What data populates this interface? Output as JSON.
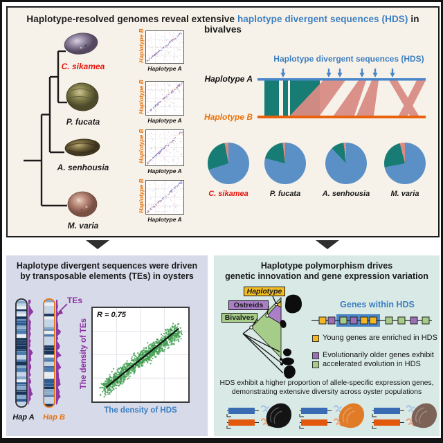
{
  "figure": {
    "title": {
      "prefix": "Haplotype-resolved genomes reveal extensive ",
      "highlight": "haplotype divergent sequences (HDS)",
      "suffix": " in bivalves",
      "highlight_color": "#3b7ec0"
    },
    "species": [
      {
        "name": "C. sikamea",
        "label_color": "#e8130c"
      },
      {
        "name": "P. fucata",
        "label_color": "#1a1a1a"
      },
      {
        "name": "A. senhousia",
        "label_color": "#1a1a1a"
      },
      {
        "name": "M. varia",
        "label_color": "#1a1a1a"
      }
    ],
    "dotplot": {
      "xlabel": "Haplotype A",
      "ylabel": "Haplotype B"
    },
    "hds_diagram": {
      "label": "Haplotype divergent sequences (HDS)",
      "hap_a": "Haplotype A",
      "hap_b": "Haplotype B",
      "colors": {
        "hap_a_line": "#4a86c8",
        "hap_b_line": "#e8620d",
        "shared_block": "#177d74",
        "divergent_ribbon": "#d98c84",
        "arrow": "#4a86c8"
      }
    }
  },
  "chart_data": [
    {
      "type": "pie",
      "title": "C. sikamea",
      "slices": [
        {
          "label": "blue",
          "value": 70,
          "color": "#5b90c6"
        },
        {
          "label": "teal",
          "value": 27,
          "color": "#177d74"
        },
        {
          "label": "pink",
          "value": 3,
          "color": "#d98c84"
        }
      ],
      "legend_position": "none"
    },
    {
      "type": "pie",
      "title": "P. fucata",
      "slices": [
        {
          "label": "blue",
          "value": 79,
          "color": "#5b90c6"
        },
        {
          "label": "teal",
          "value": 19,
          "color": "#177d74"
        },
        {
          "label": "pink",
          "value": 2,
          "color": "#d98c84"
        }
      ],
      "legend_position": "none"
    },
    {
      "type": "pie",
      "title": "A. senhousia",
      "slices": [
        {
          "label": "blue",
          "value": 88,
          "color": "#5b90c6"
        },
        {
          "label": "teal",
          "value": 10,
          "color": "#177d74"
        },
        {
          "label": "pink",
          "value": 2,
          "color": "#d98c84"
        }
      ],
      "legend_position": "none"
    },
    {
      "type": "pie",
      "title": "M. varia",
      "slices": [
        {
          "label": "blue",
          "value": 72,
          "color": "#5b90c6"
        },
        {
          "label": "teal",
          "value": 24,
          "color": "#177d74"
        },
        {
          "label": "pink",
          "value": 4,
          "color": "#d98c84"
        }
      ],
      "legend_position": "none"
    },
    {
      "type": "scatter",
      "title": "Density of TEs vs density of HDS",
      "annotation": "R = 0.75",
      "r_value": 0.75,
      "xlabel": "The density of HDS",
      "ylabel": "The density of TEs",
      "point_color": "#3e9c4e",
      "trend": "positive linear",
      "grid": true
    }
  ],
  "bottom_left": {
    "title_line1": "Haplotype divergent sequences were driven",
    "title_line2": "by transposable elements (TEs) in oysters",
    "tes_label": "TEs",
    "hap_a_label": "Hap A",
    "hap_b_label": "Hap B",
    "scatter_r_label": "R = 0.75",
    "scatter_xlabel": "The density of HDS",
    "scatter_ylabel": "The density of TEs",
    "track_color": "#8b2fa0",
    "hap_b_border": "#e8720c"
  },
  "bottom_right": {
    "title_line1": "Haplotype polymorphism drives",
    "title_line2": "genetic innovation and gene expression variation",
    "clades": [
      {
        "label": "Haplotype",
        "color": "#f2bd24"
      },
      {
        "label": "Ostreids",
        "color": "#ab7fc7"
      },
      {
        "label": "Bivalves",
        "color": "#a6cc89"
      }
    ],
    "genes_title": "Genes within HDS",
    "gene_row": {
      "sequence": [
        "yellow",
        "purple",
        "green",
        "purple",
        "yellow",
        "yellow",
        "green",
        "green",
        "purple",
        "green"
      ],
      "hds_range": [
        2,
        5
      ],
      "colors": {
        "yellow": "#f2b722",
        "purple": "#9b6fb5",
        "green": "#a6cc89",
        "hds_highlight": "#4a86c8"
      }
    },
    "legend": [
      {
        "color": "#f2b722",
        "text": "Young genes are enriched in HDS"
      },
      {
        "color": "#9b6fb5",
        "text": "Evolutionarily older genes exhibit"
      },
      {
        "color": "#a6cc89",
        "text": "accelerated evolution in HDS"
      }
    ],
    "note_line1": "HDS exhibit a higher proportion of allele-specific expression genes,",
    "note_line2": "demonstrating extensive diversity across oyster populations",
    "oyster_colors": [
      "#141414",
      "#e07b28",
      "#7d6257"
    ]
  }
}
